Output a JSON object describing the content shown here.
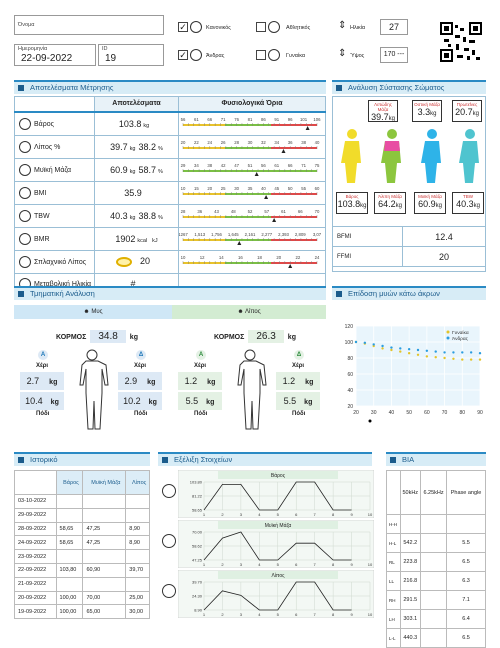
{
  "header": {
    "name_label": "Όνομα",
    "name_value": "",
    "date_label": "Ημερομηνία",
    "date_value": "22-09-2022",
    "id_label": "ID",
    "id_value": "19",
    "normal_label": "Κανονικός",
    "athletic_label": "Αθλητικός",
    "male_label": "Άνδρας",
    "female_label": "Γυναίκα",
    "age_label": "Ηλικία",
    "age_value": "27",
    "height_label": "Ύψος",
    "height_value": "170 ---"
  },
  "results": {
    "title": "Αποτελέσματα Μέτρησης",
    "col_results": "Αποτελέσματα",
    "col_limits": "Φυσιολογικά Όρια",
    "rows": [
      {
        "label": "Βάρος",
        "v1": "103.8",
        "u1": "kg",
        "v2": "",
        "u2": "",
        "icon": "scale-icon"
      },
      {
        "label": "Λίπος %",
        "v1": "39.7",
        "u1": "kg",
        "v2": "38.2",
        "u2": "%",
        "icon": "fat-icon"
      },
      {
        "label": "Μυϊκή Μάζα",
        "v1": "60.9",
        "u1": "kg",
        "v2": "58.7",
        "u2": "%",
        "icon": "muscle-icon"
      },
      {
        "label": "BMI",
        "v1": "35.9",
        "u1": "",
        "v2": "",
        "u2": "",
        "icon": "bmi-icon"
      },
      {
        "label": "TBW",
        "v1": "40.3",
        "u1": "kg",
        "v2": "38.8",
        "u2": "%",
        "icon": "water-icon"
      },
      {
        "label": "BMR",
        "v1": "1902",
        "u1": "kcal",
        "v2": "",
        "u2": "kJ",
        "icon": "bmr-icon"
      },
      {
        "label": "Σπλαχνικό Λίπος",
        "v1": "20",
        "u1": "",
        "v2": "",
        "u2": "",
        "icon": "visceral-icon"
      },
      {
        "label": "Μεταβολική Ηλικία",
        "v1": "#",
        "u1": "",
        "v2": "",
        "u2": "",
        "icon": "age-icon"
      }
    ],
    "scales": [
      [
        "56",
        "61",
        "66",
        "71",
        "76",
        "81",
        "86",
        "91",
        "96",
        "101",
        "106"
      ],
      [
        "20",
        "22",
        "24",
        "26",
        "28",
        "30",
        "32",
        "34",
        "36",
        "38",
        "40"
      ],
      [
        "29",
        "34",
        "38",
        "42",
        "47",
        "51",
        "56",
        "61",
        "66",
        "71",
        "75"
      ],
      [
        "10",
        "15",
        "20",
        "25",
        "30",
        "35",
        "40",
        "45",
        "50",
        "55",
        "60"
      ],
      [
        "28",
        "36",
        "43",
        "48",
        "52",
        "57",
        "61",
        "66",
        "70"
      ],
      [
        "1267",
        "1,513",
        "1,756",
        "1,645",
        "2,161",
        "2,277",
        "2,393",
        "2,809",
        "3,07"
      ],
      [
        "10",
        "12",
        "14",
        "16",
        "18",
        "20",
        "22",
        "24"
      ]
    ]
  },
  "composition": {
    "title": "Ανάλυση Σύστασης Σώματος",
    "top": [
      {
        "label": "Λιπώδης Μάζα",
        "value": "39.7",
        "unit": "kg"
      },
      {
        "label": "Οστική Μάζα",
        "value": "3.3",
        "unit": "kg"
      },
      {
        "label": "Πρωτεΐνες",
        "value": "20.7",
        "unit": "kg"
      }
    ],
    "bottom": [
      {
        "label": "Βάρος",
        "value": "103.8",
        "unit": "kg"
      },
      {
        "label": "Άλιπη Μάζα",
        "value": "64.2",
        "unit": "kg"
      },
      {
        "label": "Μυϊκή Μάζα",
        "value": "60.9",
        "unit": "kg"
      },
      {
        "label": "TBW",
        "value": "40.3",
        "unit": "kg"
      }
    ],
    "bfmi_label": "BFMI",
    "bfmi_value": "12.4",
    "ffmi_label": "FFMI",
    "ffmi_value": "20"
  },
  "segment": {
    "title": "Τμηματική Ανάλυση",
    "muscle_tab": "Μυς",
    "fat_tab": "Λίπος",
    "trunk_label": "ΚΟΡΜΟΣ",
    "muscle": {
      "trunk": "34.8",
      "left_arm": "2.7",
      "right_arm": "2.9",
      "left_leg": "10.4",
      "right_leg": "10.2"
    },
    "fat": {
      "trunk": "26.3",
      "left_arm": "1.2",
      "right_arm": "1.2",
      "left_leg": "5.5",
      "right_leg": "5.5"
    },
    "unit": "kg",
    "arm_label": "Χέρι",
    "leg_label": "Πόδι",
    "left": "Α",
    "right": "Δ"
  },
  "muscle_chart": {
    "title": "Επίδοση μυών κάτω άκρων",
    "legend_female": "Γυναίκα",
    "legend_male": "Άνδρας"
  },
  "chart_data": {
    "type": "line",
    "x": [
      20,
      25,
      30,
      35,
      40,
      45,
      50,
      55,
      60,
      65,
      70,
      75,
      80,
      85,
      90
    ],
    "series": [
      {
        "name": "Γυναίκα",
        "values": [
          100,
          98,
          95,
          92,
          90,
          88,
          86,
          84,
          82,
          81,
          80,
          79,
          78,
          78,
          78
        ]
      },
      {
        "name": "Άνδρας",
        "values": [
          100,
          99,
          97,
          95,
          93,
          92,
          91,
          90,
          89,
          88,
          87,
          87,
          87,
          87,
          86
        ]
      }
    ],
    "xlim": [
      20,
      90
    ],
    "ylim": [
      20,
      120
    ],
    "xticks": [
      "20",
      "30",
      "40",
      "50",
      "60",
      "70",
      "80",
      "90"
    ],
    "yticks": [
      "120",
      "100",
      "80",
      "60",
      "40",
      "20"
    ]
  },
  "history": {
    "title": "Ιστορικό",
    "cols": [
      "",
      "Βάρος",
      "Μυϊκή Μάζα",
      "Λίπος"
    ],
    "rows": [
      [
        "03-10-2022",
        "",
        "",
        ""
      ],
      [
        "29-09-2022",
        "",
        "",
        ""
      ],
      [
        "28-09-2022",
        "58,65",
        "47,25",
        "8,90"
      ],
      [
        "24-09-2022",
        "58,65",
        "47,25",
        "8,90"
      ],
      [
        "23-09-2022",
        "",
        "",
        ""
      ],
      [
        "22-09-2022",
        "103,80",
        "60,90",
        "39,70"
      ],
      [
        "21-09-2022",
        "",
        "",
        ""
      ],
      [
        "20-09-2022",
        "100,00",
        "70,00",
        "25,00"
      ],
      [
        "19-09-2022",
        "100,00",
        "65,00",
        "30,00"
      ]
    ]
  },
  "evolution": {
    "title": "Εξέλιξη Στοιχείων",
    "charts": [
      {
        "title": "Βάρος",
        "yticks": [
          "103.80",
          "81.22",
          "58.65"
        ],
        "values": [
          58.65,
          100,
          100,
          58.65,
          58.65,
          103.8,
          103.8,
          58.65,
          58.65
        ]
      },
      {
        "title": "Μυϊκή Μάζα",
        "yticks": [
          "70.00",
          "58.62",
          "47.25"
        ],
        "values": [
          47.25,
          65,
          70,
          47.25,
          47.25,
          60.9,
          60.9,
          47.25,
          47.25
        ]
      },
      {
        "title": "Λίπος",
        "yticks": [
          "39.70",
          "24.30",
          "8.90"
        ],
        "values": [
          8.9,
          30,
          25,
          8.9,
          8.9,
          39.7,
          39.7,
          8.9,
          8.9
        ]
      }
    ],
    "xticks": [
      "1",
      "2",
      "3",
      "4",
      "5",
      "6",
      "7",
      "8",
      "9",
      "10"
    ]
  },
  "bia": {
    "title": "BIA",
    "cols": [
      "",
      "50kHz",
      "6.25kHz",
      "Phase angle"
    ],
    "rows": [
      [
        "H-H",
        "",
        "",
        ""
      ],
      [
        "H-L",
        "542.2",
        "",
        "5.5"
      ],
      [
        "RL",
        "223.8",
        "",
        "6.5"
      ],
      [
        "LL",
        "216.8",
        "",
        "6.3"
      ],
      [
        "RH",
        "291.5",
        "",
        "7.1"
      ],
      [
        "LH",
        "303.1",
        "",
        "6.4"
      ],
      [
        "L-L",
        "440.3",
        "",
        "6.5"
      ]
    ]
  }
}
